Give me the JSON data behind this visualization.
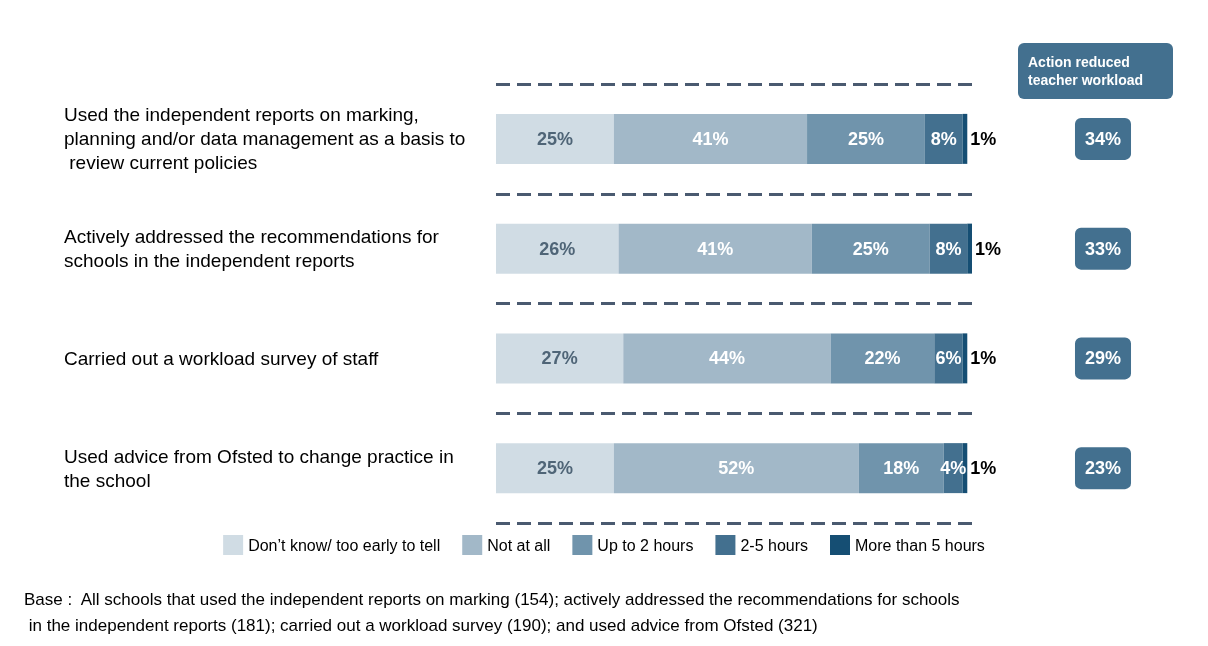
{
  "chart_data": {
    "type": "bar",
    "orientation": "horizontal",
    "stacked": true,
    "categories": [
      "Used the independent reports on marking, planning and/or data management as a basis to review current policies",
      "Actively addressed the recommendations for schools in the independent reports",
      "Carried out a workload survey of staff",
      "Used advice from Ofsted to change practice in the school"
    ],
    "series": [
      {
        "name": "Don’t know/ too early to tell",
        "color": "#d0dce4",
        "values": [
          25,
          26,
          27,
          25
        ],
        "value_labels": [
          "25%",
          "26%",
          "27%",
          "25%"
        ]
      },
      {
        "name": "Not at all",
        "color": "#a2b8c8",
        "values": [
          41,
          41,
          44,
          52
        ],
        "value_labels": [
          "41%",
          "41%",
          "44%",
          "52%"
        ]
      },
      {
        "name": "Up to 2 hours",
        "color": "#7094ac",
        "values": [
          25,
          25,
          22,
          18
        ],
        "value_labels": [
          "25%",
          "25%",
          "22%",
          "18%"
        ]
      },
      {
        "name": "2-5 hours",
        "color": "#43708f",
        "values": [
          8,
          8,
          6,
          4
        ],
        "value_labels": [
          "8%",
          "8%",
          "6%",
          "4%"
        ]
      },
      {
        "name": "More than 5 hours",
        "color": "#154e73",
        "values": [
          1,
          1,
          1,
          1
        ],
        "value_labels": [
          "1%",
          "1%",
          "1%",
          "1%"
        ]
      }
    ],
    "xlim": [
      0,
      101
    ],
    "tick_labels": "y",
    "grid": "y",
    "legend": "bottom",
    "annotations": [
      "Action reduced teacher workload",
      "34%",
      "33%",
      "29%",
      "23%",
      "Base :  All schools that used the independent reports on marking (154); actively addressed the recommendations for schools in the independent reports (181); carried out a workload survey (190); and used advice from Ofsted (321)"
    ]
  }
}
